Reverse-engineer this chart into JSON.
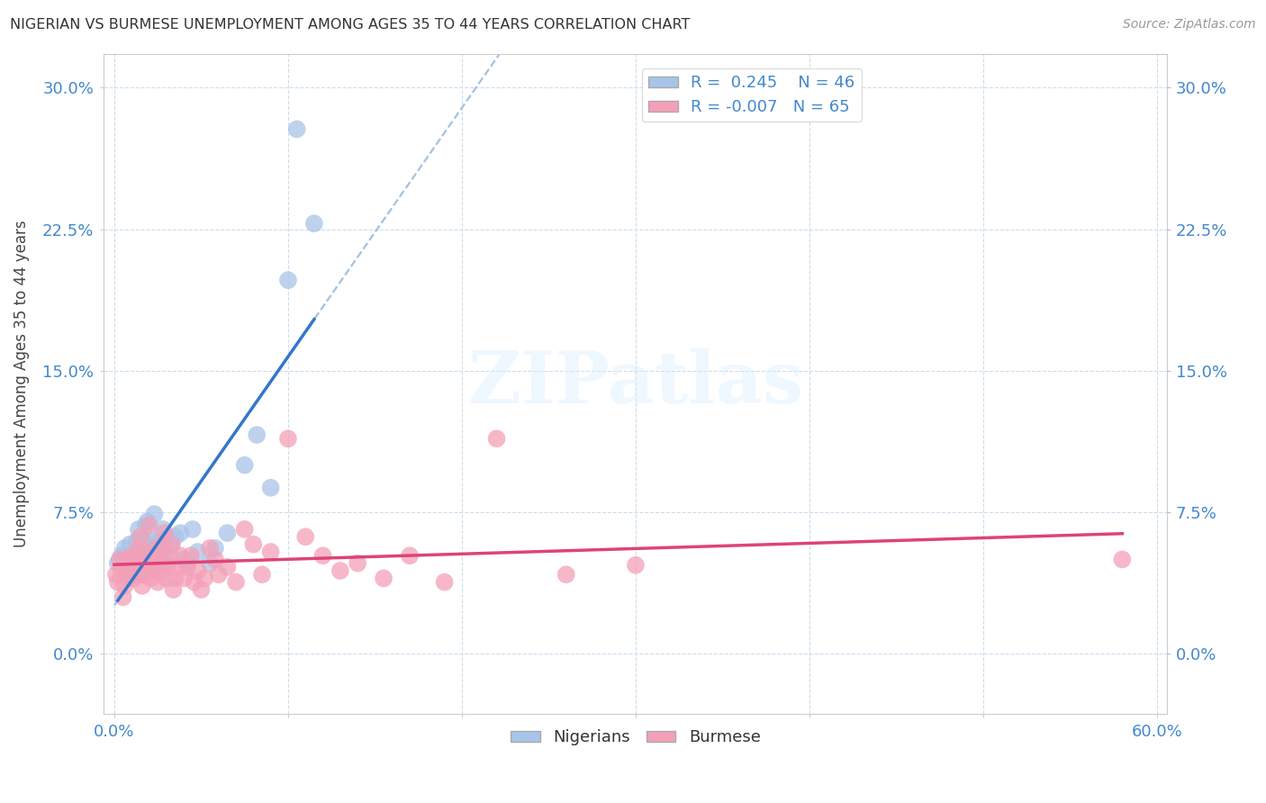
{
  "title": "NIGERIAN VS BURMESE UNEMPLOYMENT AMONG AGES 35 TO 44 YEARS CORRELATION CHART",
  "source": "Source: ZipAtlas.com",
  "ylabel": "Unemployment Among Ages 35 to 44 years",
  "xlim_min": -0.006,
  "xlim_max": 0.606,
  "ylim_min": -0.032,
  "ylim_max": 0.318,
  "xtick_positions": [
    0.0,
    0.1,
    0.2,
    0.3,
    0.4,
    0.5,
    0.6
  ],
  "ytick_positions": [
    0.0,
    0.075,
    0.15,
    0.225,
    0.3
  ],
  "ytick_labels": [
    "0.0%",
    "7.5%",
    "15.0%",
    "22.5%",
    "30.0%"
  ],
  "R_nigerian": 0.245,
  "N_nigerian": 46,
  "R_burmese": -0.007,
  "N_burmese": 65,
  "nigerian_color": "#a8c4e8",
  "burmese_color": "#f4a0b8",
  "nigerian_line_color": "#3377cc",
  "burmese_line_color": "#dd4477",
  "dashed_line_color": "#99bbdd",
  "watermark_text": "ZIPatlas",
  "bg_color": "#ffffff",
  "grid_color": "#ccddee",
  "axis_label_color": "#4488cc",
  "title_color": "#333333",
  "source_color": "#999999",
  "nigerian_x": [
    0.002,
    0.004,
    0.006,
    0.007,
    0.008,
    0.009,
    0.01,
    0.011,
    0.012,
    0.013,
    0.014,
    0.015,
    0.015,
    0.016,
    0.017,
    0.018,
    0.019,
    0.02,
    0.021,
    0.022,
    0.022,
    0.023,
    0.024,
    0.025,
    0.026,
    0.027,
    0.028,
    0.029,
    0.03,
    0.031,
    0.033,
    0.035,
    0.038,
    0.04,
    0.042,
    0.045,
    0.048,
    0.055,
    0.058,
    0.065,
    0.075,
    0.082,
    0.09,
    0.1,
    0.105,
    0.115
  ],
  "nigerian_y": [
    0.048,
    0.052,
    0.056,
    0.044,
    0.05,
    0.058,
    0.042,
    0.046,
    0.054,
    0.06,
    0.066,
    0.042,
    0.05,
    0.056,
    0.06,
    0.068,
    0.07,
    0.044,
    0.052,
    0.056,
    0.06,
    0.074,
    0.046,
    0.052,
    0.06,
    0.05,
    0.066,
    0.054,
    0.048,
    0.06,
    0.058,
    0.062,
    0.064,
    0.05,
    0.048,
    0.066,
    0.054,
    0.048,
    0.056,
    0.064,
    0.1,
    0.116,
    0.088,
    0.198,
    0.278,
    0.228
  ],
  "burmese_x": [
    0.001,
    0.002,
    0.003,
    0.004,
    0.005,
    0.006,
    0.007,
    0.008,
    0.009,
    0.01,
    0.011,
    0.012,
    0.013,
    0.014,
    0.015,
    0.016,
    0.017,
    0.018,
    0.019,
    0.02,
    0.021,
    0.022,
    0.023,
    0.024,
    0.025,
    0.026,
    0.027,
    0.028,
    0.029,
    0.03,
    0.031,
    0.032,
    0.033,
    0.034,
    0.035,
    0.036,
    0.038,
    0.04,
    0.042,
    0.044,
    0.046,
    0.048,
    0.05,
    0.052,
    0.055,
    0.058,
    0.06,
    0.065,
    0.07,
    0.075,
    0.08,
    0.085,
    0.09,
    0.1,
    0.11,
    0.12,
    0.13,
    0.14,
    0.155,
    0.17,
    0.19,
    0.22,
    0.26,
    0.3,
    0.58
  ],
  "burmese_y": [
    0.042,
    0.038,
    0.05,
    0.044,
    0.03,
    0.036,
    0.05,
    0.04,
    0.046,
    0.052,
    0.04,
    0.044,
    0.05,
    0.056,
    0.062,
    0.036,
    0.042,
    0.048,
    0.054,
    0.068,
    0.04,
    0.044,
    0.05,
    0.056,
    0.038,
    0.044,
    0.05,
    0.058,
    0.064,
    0.04,
    0.046,
    0.052,
    0.058,
    0.034,
    0.04,
    0.046,
    0.052,
    0.04,
    0.046,
    0.052,
    0.038,
    0.044,
    0.034,
    0.04,
    0.056,
    0.05,
    0.042,
    0.046,
    0.038,
    0.066,
    0.058,
    0.042,
    0.054,
    0.114,
    0.062,
    0.052,
    0.044,
    0.048,
    0.04,
    0.052,
    0.038,
    0.114,
    0.042,
    0.047,
    0.05
  ],
  "legend_top_right": true,
  "legend_bottom_center": true
}
